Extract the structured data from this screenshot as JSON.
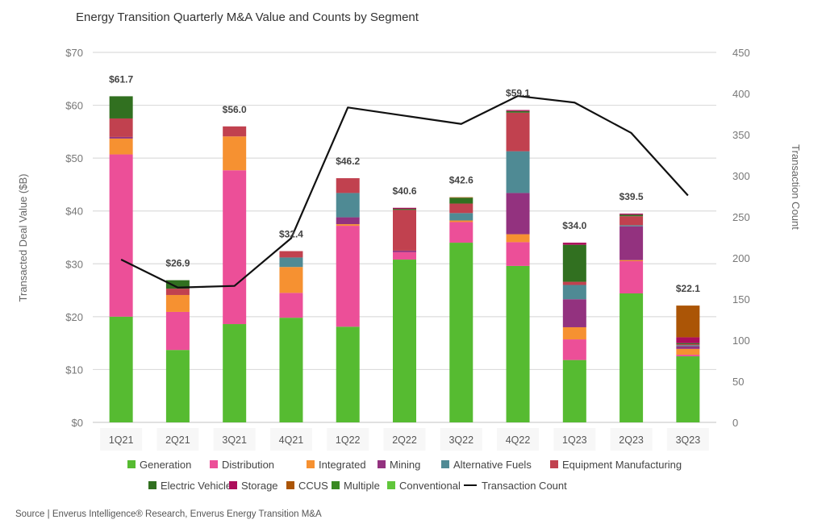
{
  "chart_data": {
    "type": "bar",
    "stacked": true,
    "title": "Energy Transition Quarterly M&A Value and Counts by Segment",
    "xlabel": "",
    "ylabel": "Transacted Deal Value ($B)",
    "y2label": "Transaction Count",
    "ylim": [
      0,
      70
    ],
    "y2lim": [
      0,
      450
    ],
    "yticks": [
      "$0",
      "$10",
      "$20",
      "$30",
      "$40",
      "$50",
      "$60",
      "$70"
    ],
    "yticks_values": [
      0,
      10,
      20,
      30,
      40,
      50,
      60,
      70
    ],
    "y2ticks": [
      "0",
      "50",
      "100",
      "150",
      "200",
      "250",
      "300",
      "350",
      "400",
      "450"
    ],
    "y2ticks_values": [
      0,
      50,
      100,
      150,
      200,
      250,
      300,
      350,
      400,
      450
    ],
    "grid": true,
    "legend_position": "bottom",
    "categories": [
      "1Q21",
      "2Q21",
      "3Q21",
      "4Q21",
      "1Q22",
      "2Q22",
      "3Q22",
      "4Q22",
      "1Q23",
      "2Q23",
      "3Q23"
    ],
    "totals": [
      61.7,
      26.9,
      56.0,
      32.4,
      46.2,
      40.6,
      42.6,
      59.1,
      34.0,
      39.5,
      22.1
    ],
    "total_labels": [
      "$61.7",
      "$26.9",
      "$56.0",
      "$32.4",
      "$46.2",
      "$40.6",
      "$42.6",
      "$59.1",
      "$34.0",
      "$39.5",
      "$22.1"
    ],
    "series": [
      {
        "name": "Generation",
        "color": "#56bb31",
        "values": [
          20.0,
          13.7,
          18.6,
          19.8,
          18.1,
          30.8,
          34.0,
          29.6,
          11.8,
          24.4,
          12.5
        ]
      },
      {
        "name": "Distribution",
        "color": "#ec4f98",
        "values": [
          30.7,
          7.2,
          29.1,
          4.7,
          19.1,
          1.4,
          3.9,
          4.5,
          3.9,
          6.1,
          0.3
        ]
      },
      {
        "name": "Integrated",
        "color": "#f69131",
        "values": [
          3.0,
          3.2,
          6.4,
          4.9,
          0.3,
          0.0,
          0.3,
          1.5,
          2.3,
          0.2,
          1.1
        ]
      },
      {
        "name": "Mining",
        "color": "#93327f",
        "values": [
          0.3,
          0.0,
          0.0,
          0.0,
          1.3,
          0.3,
          0.0,
          7.8,
          5.3,
          6.4,
          0.5
        ]
      },
      {
        "name": "Alternative Fuels",
        "color": "#4f8a94",
        "values": [
          0.0,
          0.0,
          0.0,
          1.8,
          4.6,
          0.0,
          1.4,
          7.9,
          2.7,
          0.2,
          0.2
        ]
      },
      {
        "name": "Equipment Manufacturing",
        "color": "#c1414f",
        "values": [
          3.5,
          1.2,
          1.9,
          1.2,
          2.8,
          7.7,
          1.8,
          7.3,
          0.6,
          1.7,
          0.2
        ]
      },
      {
        "name": "Electric Vehicles",
        "color": "#317020",
        "values": [
          4.2,
          1.6,
          0.0,
          0.0,
          0.0,
          0.2,
          1.1,
          0.3,
          7.0,
          0.3,
          0.2
        ]
      },
      {
        "name": "Storage",
        "color": "#ad0e5c",
        "values": [
          0.0,
          0.0,
          0.0,
          0.0,
          0.0,
          0.2,
          0.0,
          0.2,
          0.4,
          0.2,
          1.1
        ]
      },
      {
        "name": "CCUS",
        "color": "#ab5506",
        "values": [
          0.0,
          0.0,
          0.0,
          0.0,
          0.0,
          0.0,
          0.1,
          0.0,
          0.0,
          0.0,
          6.0
        ]
      },
      {
        "name": "Multiple",
        "color": "#3a8a22",
        "values": [
          0,
          0,
          0,
          0,
          0,
          0,
          0,
          0,
          0,
          0,
          0
        ]
      },
      {
        "name": "Conventional",
        "color": "#60c63b",
        "values": [
          0,
          0,
          0,
          0,
          0,
          0,
          0,
          0,
          0,
          0,
          0
        ]
      }
    ],
    "line_series": {
      "name": "Transaction Count",
      "color": "#111111",
      "axis": "right",
      "values": [
        198,
        164,
        166,
        224,
        383,
        373,
        363,
        397,
        389,
        352,
        276
      ]
    }
  },
  "source": "Source | Enverus Intelligence® Research, Enverus Energy Transition M&A"
}
